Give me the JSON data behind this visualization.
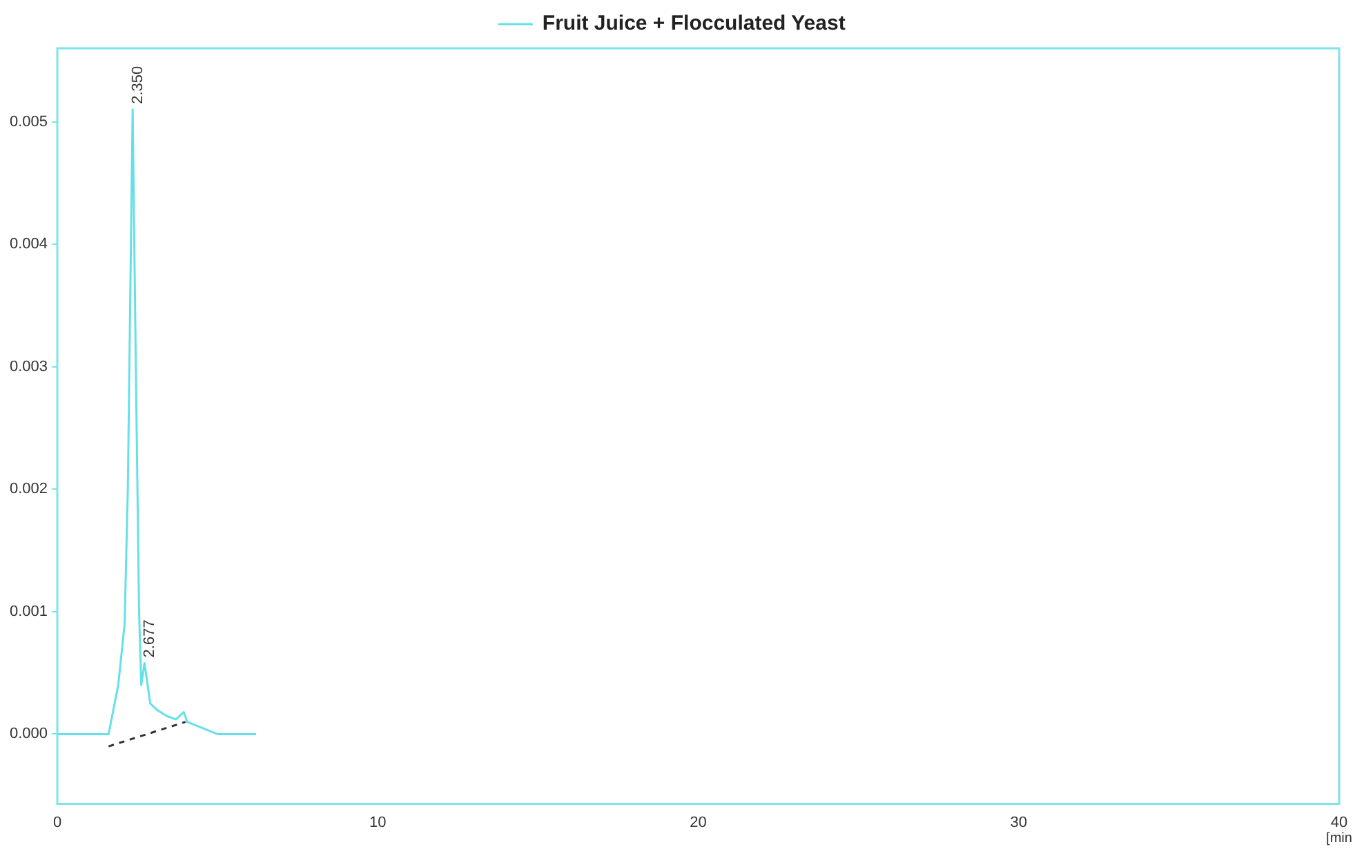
{
  "chart_data": {
    "type": "line",
    "xlabel": "[min",
    "xlim": [
      0,
      40
    ],
    "xticks": [
      0,
      10,
      20,
      30,
      40
    ],
    "ylim": [
      -0.00057,
      0.0056
    ],
    "yticks": [
      {
        "value": 0,
        "label": "0.000"
      },
      {
        "value": 0.001,
        "label": "0.001"
      },
      {
        "value": 0.002,
        "label": "0.002"
      },
      {
        "value": 0.003,
        "label": "0.003"
      },
      {
        "value": 0.004,
        "label": "0.004"
      },
      {
        "value": 0.005,
        "label": "0.005"
      }
    ],
    "grid": false,
    "legend": "top",
    "marker": "none",
    "series": [
      {
        "name": "Fruit Juice + Flocculated Yeast",
        "color": "#66e0e8",
        "x": [
          0,
          1.5,
          1.6,
          1.9,
          2.1,
          2.2,
          2.35,
          2.45,
          2.55,
          2.62,
          2.72,
          2.9,
          3.1,
          3.4,
          3.7,
          3.95,
          4.05,
          5,
          6.2
        ],
        "values": [
          0,
          0,
          0,
          0.0004,
          0.0009,
          0.002,
          0.0051,
          0.003,
          0.001,
          0.0004,
          0.00058,
          0.00025,
          0.0002,
          0.00015,
          0.00012,
          0.00018,
          0.0001,
          0,
          0
        ]
      },
      {
        "color": "#333333",
        "line_style": "dashed",
        "x": [
          1.6,
          4.0
        ],
        "values": [
          -0.0001,
          0.0001
        ]
      }
    ],
    "annotations": [
      {
        "text": "2.350",
        "x": 2.35,
        "y": 0.0051
      },
      {
        "text": "2.677",
        "x": 2.72,
        "y": 0.00058
      }
    ]
  }
}
